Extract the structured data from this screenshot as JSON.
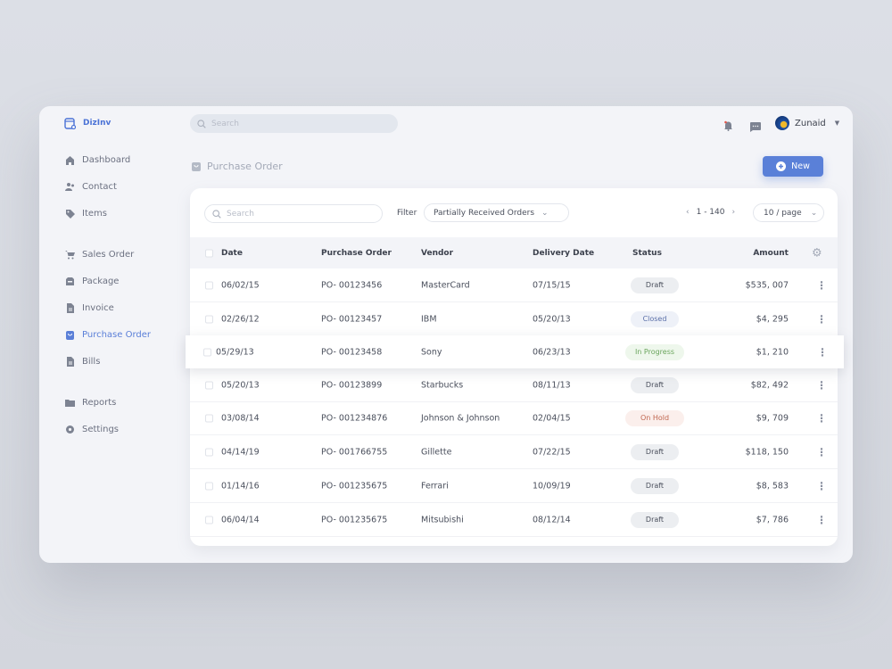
{
  "app": {
    "name": "DizInv"
  },
  "topbar": {
    "search_placeholder": "Search",
    "user": "Zunaid"
  },
  "sidebar": {
    "items": [
      {
        "label": "Dashboard",
        "icon": "home-icon"
      },
      {
        "label": "Contact",
        "icon": "users-icon"
      },
      {
        "label": "Items",
        "icon": "tag-icon"
      },
      {
        "label": "Sales Order",
        "icon": "cart-icon"
      },
      {
        "label": "Package",
        "icon": "package-icon"
      },
      {
        "label": "Invoice",
        "icon": "invoice-icon"
      },
      {
        "label": "Purchase Order",
        "icon": "bag-icon",
        "active": true
      },
      {
        "label": "Bills",
        "icon": "bill-icon"
      },
      {
        "label": "Reports",
        "icon": "folder-icon"
      },
      {
        "label": "Settings",
        "icon": "gear-icon"
      }
    ]
  },
  "page": {
    "title": "Purchase Order",
    "new_label": "New"
  },
  "toolbar": {
    "search_placeholder": "Search",
    "filter_label": "Filter",
    "filter_value": "Partially Received Orders",
    "range": "1 - 140",
    "per_page": "10 / page"
  },
  "table": {
    "columns": [
      "Date",
      "Purchase Order",
      "Vendor",
      "Delivery Date",
      "Status",
      "Amount"
    ],
    "rows": [
      [
        "06/02/15",
        "PO- 00123456",
        "MasterCard",
        "07/15/15",
        "Draft",
        "$535, 007"
      ],
      [
        "02/26/12",
        "PO- 00123457",
        "IBM",
        "05/20/13",
        "Closed",
        "$4, 295"
      ],
      [
        "05/29/13",
        "PO- 00123458",
        "Sony",
        "06/23/13",
        "In Progress",
        "$1, 210"
      ],
      [
        "05/20/13",
        "PO- 00123899",
        "Starbucks",
        "08/11/13",
        "Draft",
        "$82, 492"
      ],
      [
        "03/08/14",
        "PO- 001234876",
        "Johnson & Johnson",
        "02/04/15",
        "On Hold",
        "$9, 709"
      ],
      [
        "04/14/19",
        "PO- 001766755",
        "Gillette",
        "07/22/15",
        "Draft",
        "$118, 150"
      ],
      [
        "01/14/16",
        "PO- 001235675",
        "Ferrari",
        "10/09/19",
        "Draft",
        "$8, 583"
      ],
      [
        "06/04/14",
        "PO- 001235675",
        "Mitsubishi",
        "08/12/14",
        "Draft",
        "$7, 786"
      ]
    ]
  },
  "status_colors": {
    "Draft": [
      "#eceef1",
      "#4a4f5c"
    ],
    "Closed": [
      "#eef1f8",
      "#5a6fa8"
    ],
    "In Progress": [
      "#eef7ec",
      "#6aa55c"
    ],
    "On Hold": [
      "#fbefec",
      "#c0664f"
    ]
  },
  "colors": {
    "accent": "#5a80d8"
  }
}
